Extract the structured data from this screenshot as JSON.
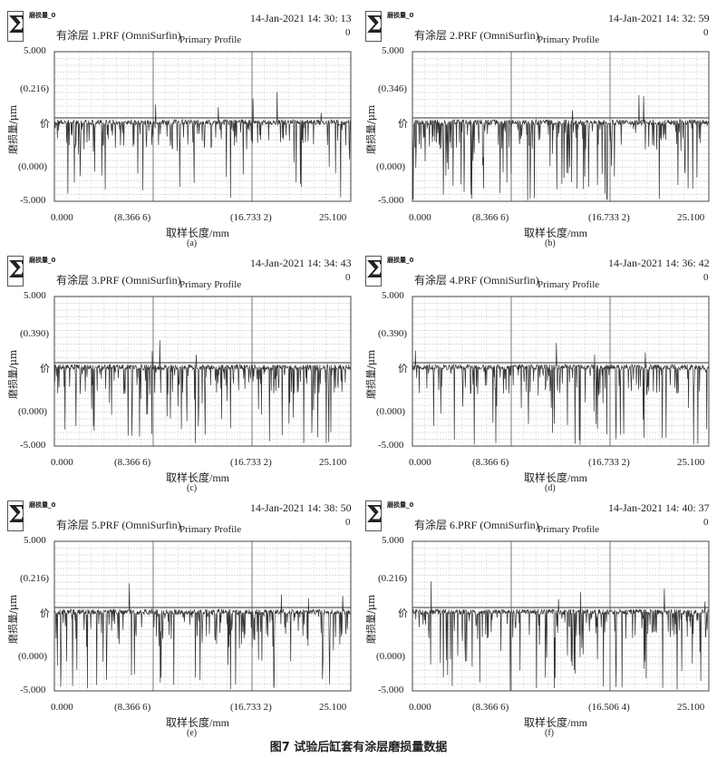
{
  "figure": {
    "caption": "图7  试验后缸套有涂层磨损量数据",
    "panels": [
      {
        "id": "a",
        "logo_text": "磨损量_0",
        "file": "有涂层 1.PRF (OmniSurfin)",
        "title": "Primary Profile",
        "timestamp": "14-Jan-2021 14: 30: 13",
        "index": "0",
        "ytick_upper": "(0.216)",
        "xtick_third": "(16.733 2)",
        "label": "(a)"
      },
      {
        "id": "b",
        "logo_text": "磨损量_0",
        "file": "有涂层 2.PRF (OmniSurfin)",
        "title": "Primary Profile",
        "timestamp": "14-Jan-2021 14: 32: 59",
        "index": "0",
        "ytick_upper": "(0.346)",
        "xtick_third": "(16.733 2)",
        "label": "(b)"
      },
      {
        "id": "c",
        "logo_text": "磨损量_0",
        "file": "有涂层 3.PRF (OmniSurfin)",
        "title": "Primary Profile",
        "timestamp": "14-Jan-2021 14: 34: 43",
        "index": "0",
        "ytick_upper": "(0.390)",
        "xtick_third": "(16.733 2)",
        "label": "(c)"
      },
      {
        "id": "d",
        "logo_text": "磨损量_0",
        "file": "有涂层 4.PRF (OmniSurfin)",
        "title": "Primary Profile",
        "timestamp": "14-Jan-2021 14: 36: 42",
        "index": "0",
        "ytick_upper": "(0.390)",
        "xtick_third": "(16.733 2)",
        "label": "(d)"
      },
      {
        "id": "e",
        "logo_text": "磨损量_0",
        "file": "有涂层 5.PRF (OmniSurfin)",
        "title": "Primary Profile",
        "timestamp": "14-Jan-2021 14: 38: 50",
        "index": "0",
        "ytick_upper": "(0.216)",
        "xtick_third": "(16.733 2)",
        "label": "(e)"
      },
      {
        "id": "f",
        "logo_text": "磨损量_0",
        "file": "有涂层 6.PRF (OmniSurfin)",
        "title": "Primary Profile",
        "timestamp": "14-Jan-2021 14: 40: 37",
        "index": "0",
        "ytick_upper": "(0.216)",
        "xtick_third": "(16.506 4)",
        "label": "(f)"
      }
    ]
  },
  "chart_data": {
    "type": "line",
    "xlabel": "取样长度/mm",
    "ylabel": "磨损量/μm",
    "ytick_mid": "价",
    "ytick_top": "5.000",
    "ytick_zero": "(0.000)",
    "ytick_bottom": "-5.000",
    "xtick_first": "0.000",
    "xtick_second": "(8.366 6)",
    "xtick_last": "25.100",
    "xlim": [
      0,
      25.1
    ],
    "ylim": [
      -5,
      5
    ],
    "grid": true,
    "line_color": "#333333",
    "note": "profile: near-flat baseline with dense downward wear spikes"
  }
}
